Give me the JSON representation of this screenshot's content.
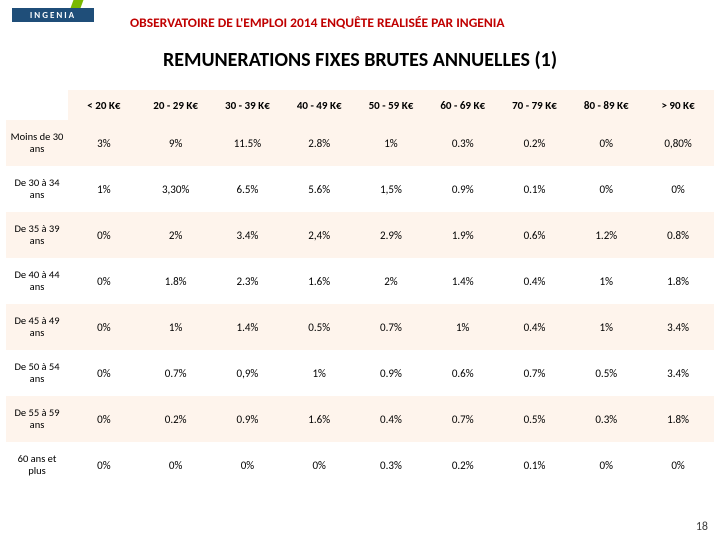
{
  "logo": {
    "text": "INGENIA"
  },
  "header": "OBSERVATOIRE DE L'EMPLOI 2014 ENQUÊTE REALISÉE PAR INGENIA",
  "title": "REMUNERATIONS FIXES BRUTES ANNUELLES (1)",
  "page_number": "18",
  "table": {
    "columns": [
      "< 20 K€",
      "20 - 29 K€",
      "30 - 39 K€",
      "40 - 49 K€",
      "50 - 59 K€",
      "60 - 69 K€",
      "70 - 79 K€",
      "80 - 89 K€",
      "> 90 K€"
    ],
    "row_labels": [
      "Moins de 30 ans",
      "De 30 à 34 ans",
      "De 35 à 39 ans",
      "De 40 à 44 ans",
      "De 45 à 49 ans",
      "De 50 à 54 ans",
      "De 55 à 59 ans",
      "60 ans et plus"
    ],
    "rows": [
      [
        "3%",
        "9%",
        "11.5%",
        "2.8%",
        "1%",
        "0.3%",
        "0.2%",
        "0%",
        "0,80%"
      ],
      [
        "1%",
        "3,30%",
        "6.5%",
        "5.6%",
        "1,5%",
        "0.9%",
        "0.1%",
        "0%",
        "0%"
      ],
      [
        "0%",
        "2%",
        "3.4%",
        "2,4%",
        "2.9%",
        "1.9%",
        "0.6%",
        "1.2%",
        "0.8%"
      ],
      [
        "0%",
        "1.8%",
        "2.3%",
        "1.6%",
        "2%",
        "1.4%",
        "0.4%",
        "1%",
        "1.8%"
      ],
      [
        "0%",
        "1%",
        "1.4%",
        "0.5%",
        "0.7%",
        "1%",
        "0.4%",
        "1%",
        "3.4%"
      ],
      [
        "0%",
        "0.7%",
        "0,9%",
        "1%",
        "0.9%",
        "0.6%",
        "0.7%",
        "0.5%",
        "3.4%"
      ],
      [
        "0%",
        "0.2%",
        "0.9%",
        "1.6%",
        "0.4%",
        "0.7%",
        "0.5%",
        "0.3%",
        "1.8%"
      ],
      [
        "0%",
        "0%",
        "0%",
        "0%",
        "0.3%",
        "0.2%",
        "0.1%",
        "0%",
        "0%"
      ]
    ],
    "header_bg": "#fef4ec",
    "stripe_bg": "#fef4ec",
    "font_size": 11
  },
  "colors": {
    "accent_red": "#c00000",
    "logo_blue": "#1f4e79",
    "logo_green": "#7ab800"
  }
}
